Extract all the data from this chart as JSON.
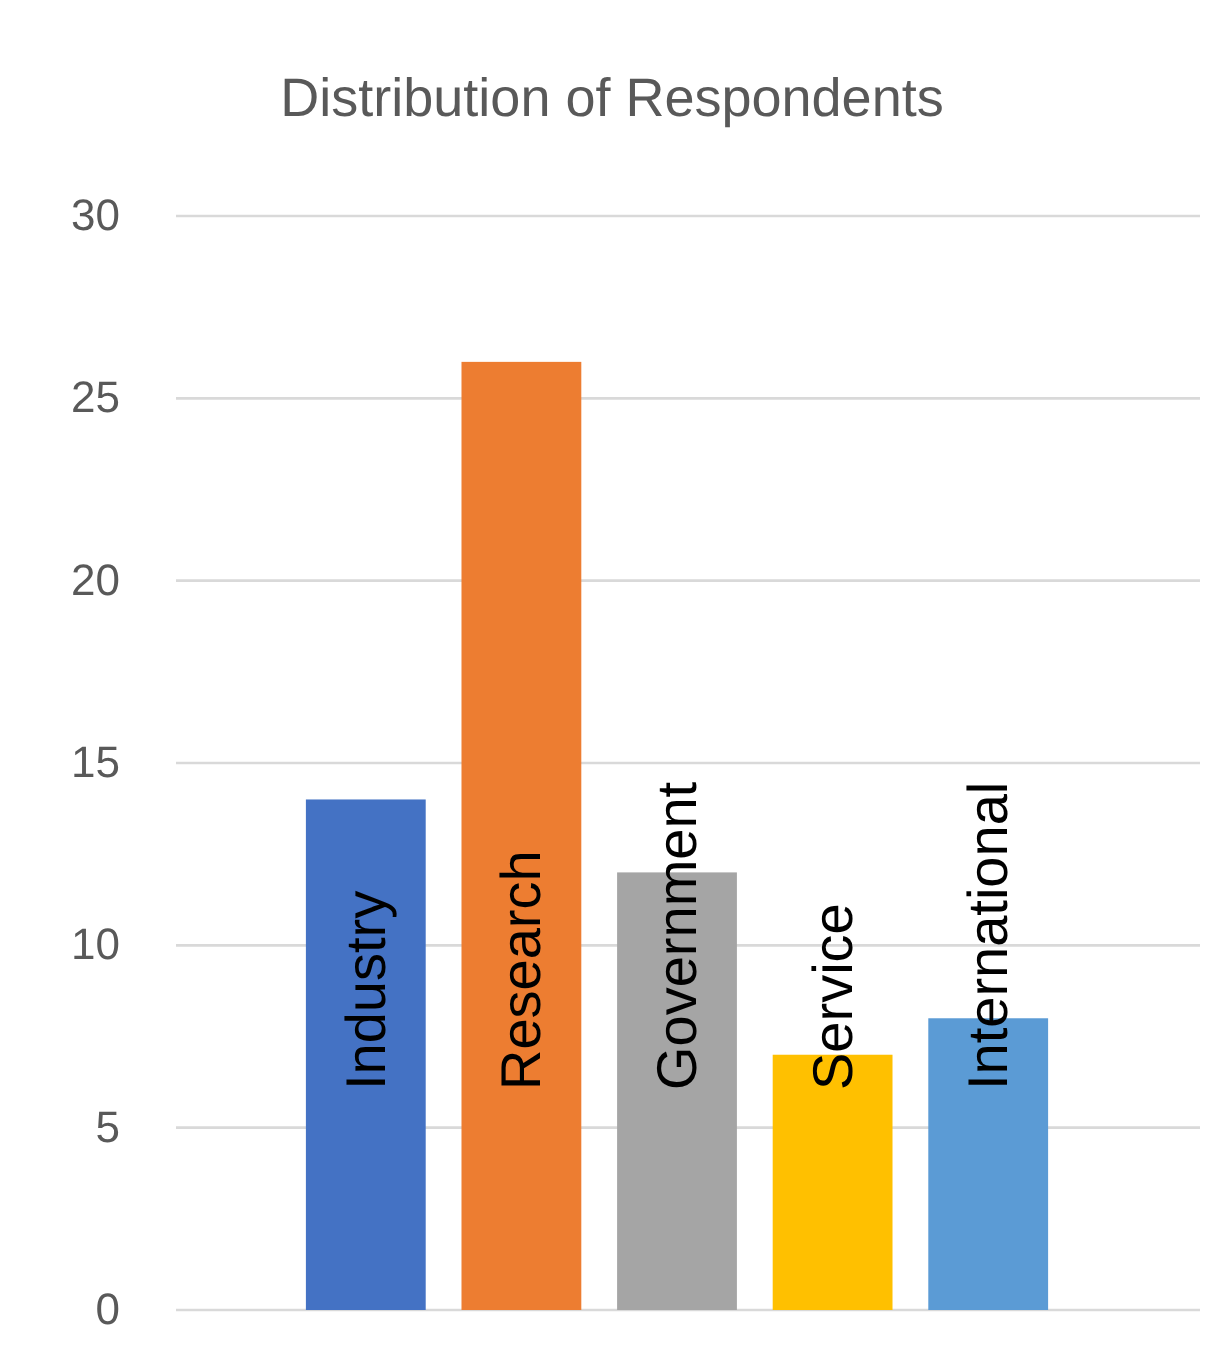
{
  "chart_data": {
    "type": "bar",
    "title": "Distribution of Respondents",
    "categories": [
      "Industry",
      "Research",
      "Government",
      "Service",
      "International"
    ],
    "values": [
      14,
      26,
      12,
      7,
      8
    ],
    "colors": [
      "#4472c4",
      "#ed7d31",
      "#a5a5a5",
      "#ffc000",
      "#5b9bd5"
    ],
    "ylim": [
      0,
      30
    ],
    "yticks": [
      0,
      5,
      10,
      15,
      20,
      25,
      30
    ],
    "grid": "y"
  }
}
